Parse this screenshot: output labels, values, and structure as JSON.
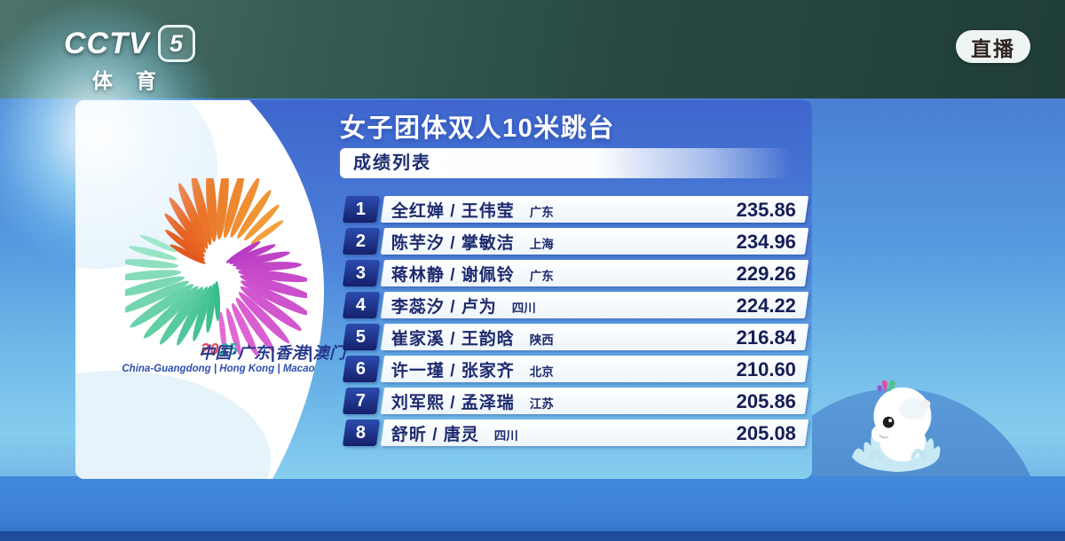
{
  "channel": {
    "name": "CCTV",
    "number": "5",
    "label": "体育"
  },
  "live_badge": {
    "label": "直播"
  },
  "event": {
    "title": "女子团体双人10米跳台",
    "list_header": "成绩列表"
  },
  "results": [
    {
      "rank": "1",
      "names": "全红婵 / 王伟莹",
      "region": "广东",
      "score": "235.86"
    },
    {
      "rank": "2",
      "names": "陈芋汐 / 掌敏洁",
      "region": "上海",
      "score": "234.96"
    },
    {
      "rank": "3",
      "names": "蒋林静 / 谢佩铃",
      "region": "广东",
      "score": "229.26"
    },
    {
      "rank": "4",
      "names": "李蕊汐 / 卢为",
      "region": "四川",
      "score": "224.22"
    },
    {
      "rank": "5",
      "names": "崔家溪 / 王韵晗",
      "region": "陕西",
      "score": "216.84"
    },
    {
      "rank": "6",
      "names": "许一瑾 / 张家齐",
      "region": "北京",
      "score": "210.60"
    },
    {
      "rank": "7",
      "names": "刘军熙 / 孟泽瑞",
      "region": "江苏",
      "score": "205.86"
    },
    {
      "rank": "8",
      "names": "舒昕 / 唐灵",
      "region": "四川",
      "score": "205.08"
    }
  ],
  "emblem": {
    "title_cn": "中国·广东|香港|澳门",
    "year_first": "20",
    "year_second": "25",
    "title_en": "China-Guangdong | Hong Kong | Macao",
    "colors": {
      "orange_start": "#e4571c",
      "orange_end": "#f2a03a",
      "magenta_start": "#b83bc4",
      "magenta_end": "#e56ad4",
      "green_start": "#35bd8a",
      "green_end": "#9fe6c9",
      "year_first": "#e8445c",
      "year_second": "#2bb3a3",
      "text_cn": "#27388c",
      "text_en": "#2b4fae"
    }
  },
  "theme": {
    "panel_top": "#3f66cd",
    "panel_bottom": "#86ceef",
    "rank_badge": "#1b2d82",
    "row_text": "#1d2a6e",
    "live_pill": "#eef4f1",
    "live_text": "#2e2321",
    "water": "#3c80d6",
    "top_band": "#284a42"
  }
}
